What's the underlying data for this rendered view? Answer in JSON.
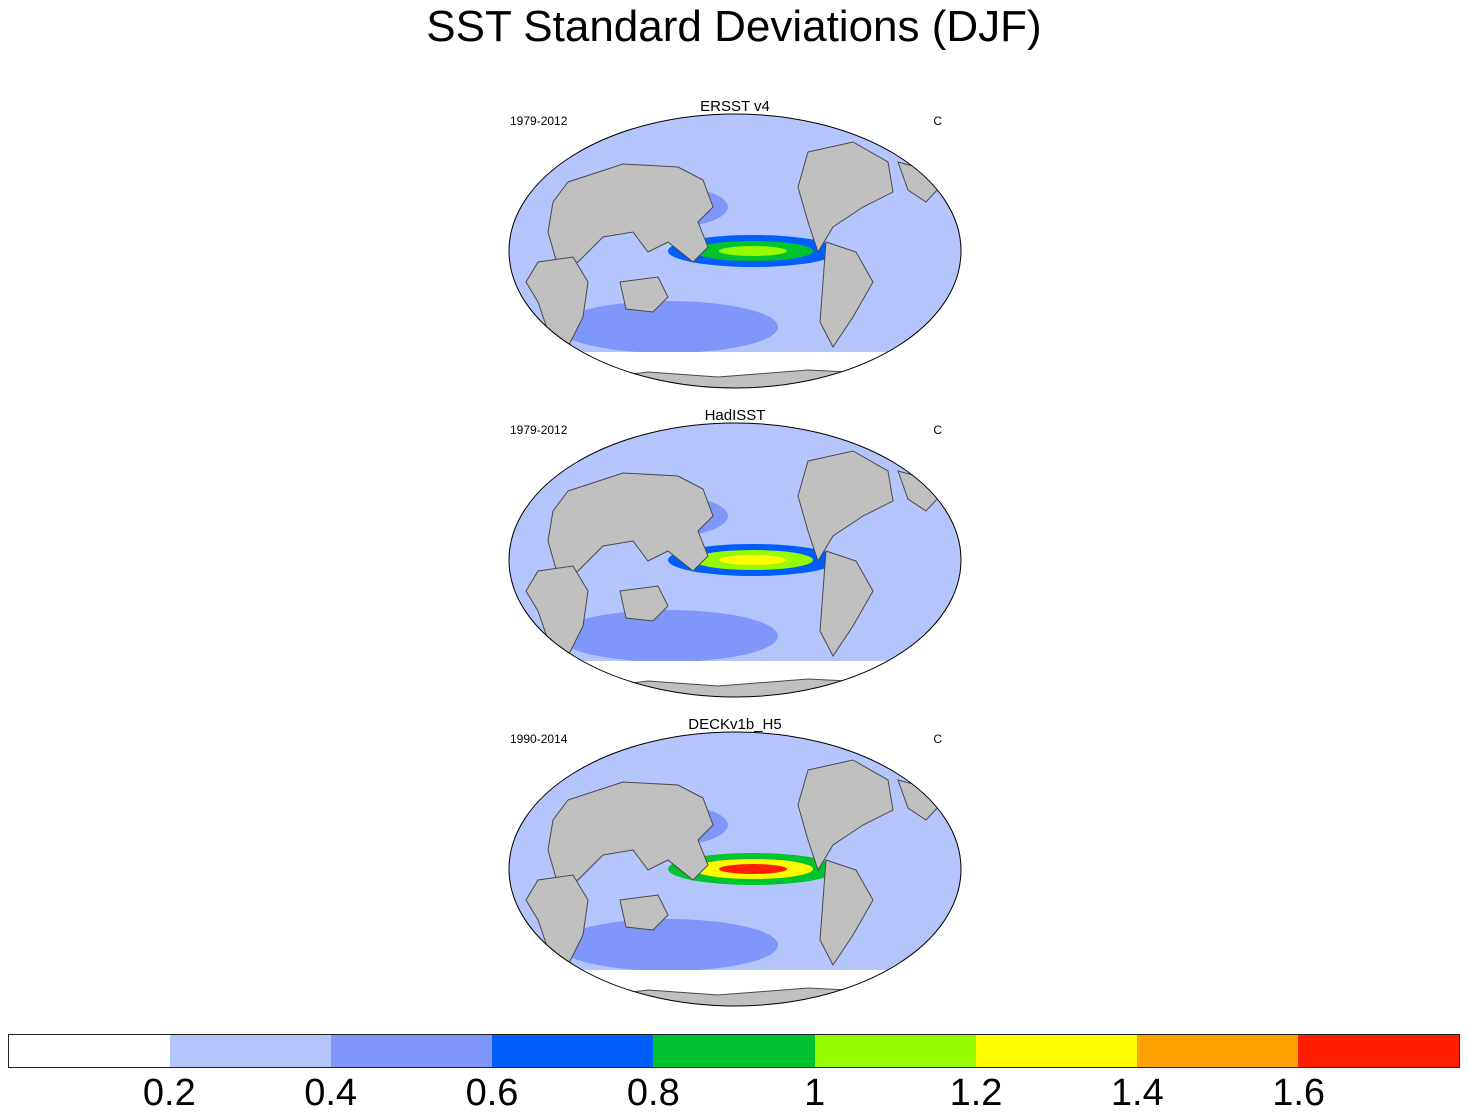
{
  "title": "SST Standard Deviations (DJF)",
  "panels": [
    {
      "name": "ERSST v4",
      "period": "1979-2012",
      "units": "C",
      "equatorial_peak": 1.1
    },
    {
      "name": "HadISST",
      "period": "1979-2012",
      "units": "C",
      "equatorial_peak": 1.3
    },
    {
      "name": "DECKv1b_H5",
      "period": "1990-2014",
      "units": "C",
      "equatorial_peak": 1.7
    }
  ],
  "colorbar": {
    "colors": [
      "#ffffff",
      "#b4c5fc",
      "#7f97fa",
      "#005efc",
      "#00c42f",
      "#97fb00",
      "#fffc00",
      "#ffa100",
      "#ff1e00"
    ],
    "tick_labels": [
      "0.2",
      "0.4",
      "0.6",
      "0.8",
      "1",
      "1.2",
      "1.4",
      "1.6"
    ]
  },
  "colors": {
    "land": "#bfbfbf",
    "coast": "#4a4a4a"
  }
}
